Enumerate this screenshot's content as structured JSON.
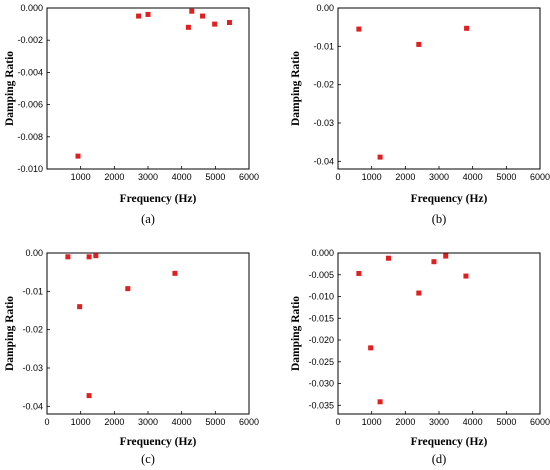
{
  "chart_data": [
    {
      "type": "scatter",
      "panel_label": "(a)",
      "xlabel": "Frequency (Hz)",
      "ylabel": "Damping Ratio",
      "xlim": [
        0,
        6000
      ],
      "ylim": [
        -0.01,
        0.0
      ],
      "xticks": [
        1000,
        2000,
        3000,
        4000,
        5000,
        6000
      ],
      "xticklabels": [
        "1000",
        "2000",
        "3000",
        "4000",
        "5000",
        "6000"
      ],
      "yticks": [
        0.0,
        -0.002,
        -0.004,
        -0.006,
        -0.008,
        -0.01
      ],
      "yticklabels": [
        "0.000",
        "-0.002",
        "-0.004",
        "-0.006",
        "-0.008",
        "-0.010"
      ],
      "series": [
        {
          "color": "#e02020",
          "x": [
            920,
            2720,
            3000,
            4200,
            4300,
            4620,
            4980,
            5420
          ],
          "y": [
            -0.0092,
            -0.0005,
            -0.0004,
            -0.0012,
            -0.0002,
            -0.0005,
            -0.001,
            -0.0009
          ]
        }
      ]
    },
    {
      "type": "scatter",
      "panel_label": "(b)",
      "xlabel": "Frequency (Hz)",
      "ylabel": "Damping Ratio",
      "xlim": [
        0,
        6000
      ],
      "ylim": [
        -0.042,
        0.0
      ],
      "xticks": [
        0,
        1000,
        2000,
        3000,
        4000,
        5000,
        6000
      ],
      "xticklabels": [
        "0",
        "1000",
        "2000",
        "3000",
        "4000",
        "5000",
        "6000"
      ],
      "yticks": [
        0.0,
        -0.01,
        -0.02,
        -0.03,
        -0.04
      ],
      "yticklabels": [
        "0.00",
        "-0.01",
        "-0.02",
        "-0.03",
        "-0.04"
      ],
      "series": [
        {
          "color": "#e02020",
          "x": [
            620,
            1250,
            2400,
            3820
          ],
          "y": [
            -0.0055,
            -0.0389,
            -0.0095,
            -0.0053
          ]
        }
      ]
    },
    {
      "type": "scatter",
      "panel_label": "(c)",
      "xlabel": "Frequency (Hz)",
      "ylabel": "Damping Ratio",
      "xlim": [
        0,
        6000
      ],
      "ylim": [
        -0.042,
        0.0
      ],
      "xticks": [
        0,
        1000,
        2000,
        3000,
        4000,
        5000,
        6000
      ],
      "xticklabels": [
        "0",
        "1000",
        "2000",
        "3000",
        "4000",
        "5000",
        "6000"
      ],
      "yticks": [
        0.0,
        -0.01,
        -0.02,
        -0.03,
        -0.04
      ],
      "yticklabels": [
        "0.00",
        "-0.01",
        "-0.02",
        "-0.03",
        "-0.04"
      ],
      "series": [
        {
          "color": "#e02020",
          "x": [
            620,
            970,
            1250,
            1450,
            2400,
            3800
          ],
          "y": [
            -0.001,
            -0.014,
            -0.001,
            -0.0007,
            -0.0093,
            -0.0053
          ]
        },
        {
          "color": "#e02020",
          "x": [
            1250
          ],
          "y": [
            -0.0372
          ]
        }
      ]
    },
    {
      "type": "scatter",
      "panel_label": "(d)",
      "xlabel": "Frequency (Hz)",
      "ylabel": "Damping Ratio",
      "xlim": [
        0,
        6000
      ],
      "ylim": [
        -0.037,
        0.0
      ],
      "xticks": [
        0,
        1000,
        2000,
        3000,
        4000,
        5000,
        6000
      ],
      "xticklabels": [
        "0",
        "1000",
        "2000",
        "3000",
        "4000",
        "5000",
        "6000"
      ],
      "yticks": [
        0.0,
        -0.005,
        -0.01,
        -0.015,
        -0.02,
        -0.025,
        -0.03,
        -0.035
      ],
      "yticklabels": [
        "0.000",
        "-0.005",
        "-0.010",
        "-0.015",
        "-0.020",
        "-0.025",
        "-0.030",
        "-0.035"
      ],
      "series": [
        {
          "color": "#e02020",
          "x": [
            620,
            970,
            1250,
            1500,
            2400,
            2850,
            3200,
            3800
          ],
          "y": [
            -0.0047,
            -0.0218,
            -0.0342,
            -0.0012,
            -0.0092,
            -0.002,
            -0.0007,
            -0.0053
          ]
        }
      ]
    }
  ]
}
